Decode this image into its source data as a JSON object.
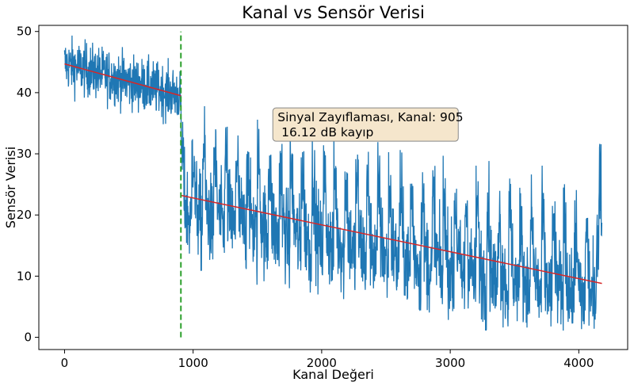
{
  "chart_data": {
    "type": "line",
    "title": "Kanal vs Sensör Verisi",
    "xlabel": "Kanal Değeri",
    "ylabel": "Sensör Verisi",
    "xlim": [
      -200,
      4380
    ],
    "ylim": [
      -2,
      51
    ],
    "xticks": [
      0,
      1000,
      2000,
      3000,
      4000
    ],
    "yticks": [
      0,
      10,
      20,
      30,
      40,
      50
    ],
    "grid": false,
    "series": [
      {
        "color": "#1f77b4",
        "segments": [
          {
            "x_start": 0,
            "x_end": 905,
            "mean_start": 44.7,
            "mean_end": 39.5,
            "noise": 2.2
          },
          {
            "x_start": 905,
            "x_end": 4180,
            "mean_start": 23.2,
            "mean_end": 8.8,
            "noise": 5.5,
            "oscillation_period": 85
          }
        ]
      }
    ],
    "trend_lines": [
      {
        "color": "#d62728",
        "x": [
          0,
          905
        ],
        "y": [
          44.7,
          39.5
        ]
      },
      {
        "color": "#d62728",
        "x": [
          905,
          4180
        ],
        "y": [
          23.2,
          8.8
        ]
      }
    ],
    "vline": {
      "x": 905,
      "y": [
        0,
        50
      ],
      "color": "#2ca02c",
      "style": "dashed"
    },
    "annotation": {
      "line1": "Sinyal Zayıflaması, Kanal: 905",
      "line2": " 16.12 dB kayıp",
      "x": 1620,
      "y": 37.5,
      "facecolor": "#f5e6cc"
    }
  }
}
